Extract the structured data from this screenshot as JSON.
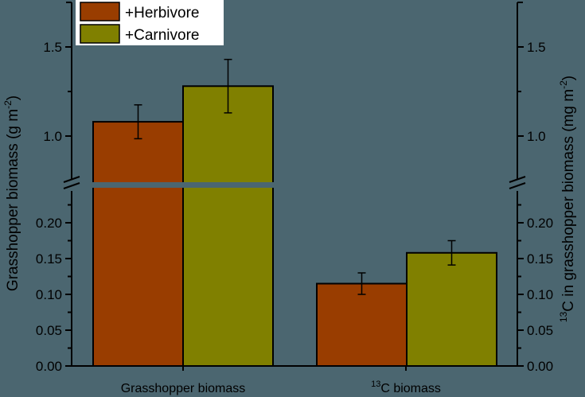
{
  "chart_data": {
    "type": "bar",
    "title": "",
    "categories": [
      "Grasshopper biomass",
      "13C biomass"
    ],
    "category_labels": [
      {
        "pre": "",
        "sup": "",
        "text": "Grasshopper biomass"
      },
      {
        "pre": "",
        "sup": "13",
        "text": "C biomass"
      }
    ],
    "series": [
      {
        "name": "+Herbivore",
        "color": "#993d00",
        "values": [
          1.08,
          0.115
        ],
        "errors": [
          0.095,
          0.015
        ]
      },
      {
        "name": "+Carnivore",
        "color": "#808000",
        "values": [
          1.28,
          0.158
        ],
        "errors": [
          0.15,
          0.017
        ]
      }
    ],
    "xlabel": "",
    "ylabel": "Grasshopper biomass (g m-2)",
    "ylabel_parts": {
      "main": "Grasshopper biomass (g m",
      "sup": "-2",
      "end": ")"
    },
    "y2label": "13C in grasshopper biomass (mg m-2)",
    "y2label_parts": {
      "sup1": "13",
      "main": "C in grasshopper biomass (mg m",
      "sup": "-2",
      "end": ")"
    },
    "axis_break": true,
    "ylim_lower": [
      0,
      0.225
    ],
    "ylim_upper": [
      0.9,
      1.75
    ],
    "yticks_lower": [
      "0.00",
      "0.05",
      "0.10",
      "0.15",
      "0.20"
    ],
    "yticks_upper": [
      "1.0",
      "1.5"
    ],
    "y2ticks_lower": [
      "0.00",
      "0.05",
      "0.10",
      "0.15",
      "0.20"
    ],
    "y2ticks_upper": [
      "1.0",
      "1.5"
    ],
    "grid": false,
    "legend_position": "top-left",
    "background": "#4b6670"
  }
}
